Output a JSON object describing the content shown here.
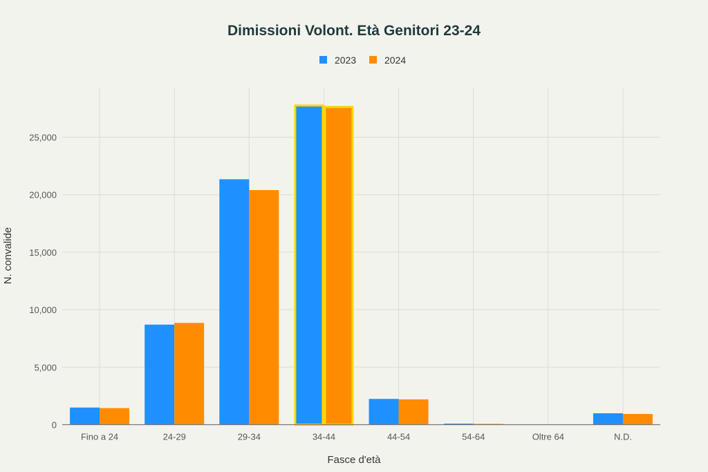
{
  "chart_data": {
    "type": "bar",
    "title": "Dimissioni Volont. Età Genitori 23-24",
    "xlabel": "Fasce d'età",
    "ylabel": "N. convalide",
    "categories": [
      "Fino a 24",
      "24-29",
      "29-34",
      "34-44",
      "44-54",
      "54-64",
      "Oltre 64",
      "N.D."
    ],
    "series": [
      {
        "name": "2023",
        "color": "#1e90ff",
        "values": [
          1490,
          8700,
          21340,
          27840,
          2240,
          90,
          5,
          990
        ]
      },
      {
        "name": "2024",
        "color": "#ff8c00",
        "values": [
          1440,
          8850,
          20400,
          27720,
          2200,
          70,
          5,
          930
        ]
      }
    ],
    "highlight_category": "34-44",
    "highlight_color": "#ffd700",
    "ylim": [
      0,
      28000
    ],
    "yticks": [
      0,
      5000,
      10000,
      15000,
      20000,
      25000
    ],
    "ytick_labels": [
      "0",
      "5,000",
      "10,000",
      "15,000",
      "20,000",
      "25,000"
    ],
    "grid": true,
    "legend_position": "top-center"
  }
}
